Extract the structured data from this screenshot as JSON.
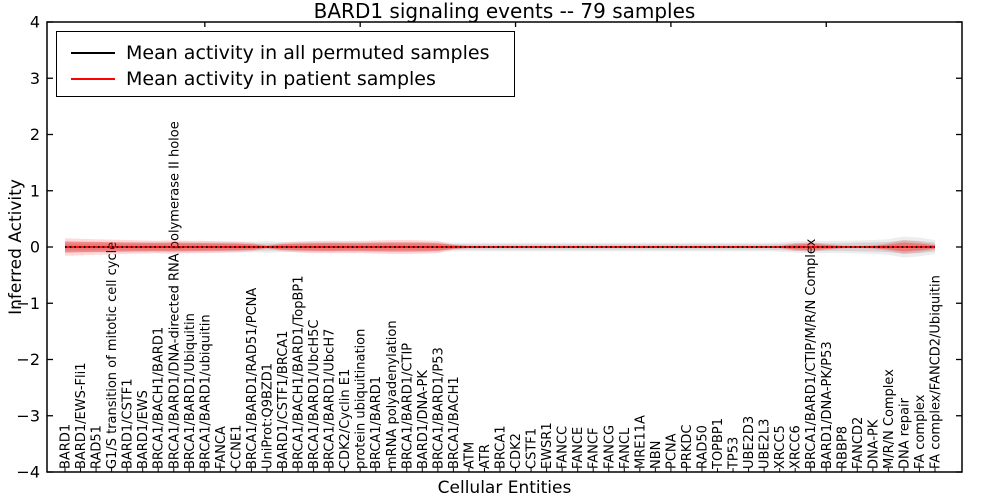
{
  "chart_data": {
    "type": "line",
    "title": "BARD1 signaling events -- 79 samples",
    "xlabel": "Cellular Entities",
    "ylabel": "Inferred Activity",
    "ylim": [
      -4,
      4
    ],
    "yticks": [
      4,
      3,
      2,
      1,
      0,
      -1,
      -2,
      -3,
      -4
    ],
    "grid": false,
    "legend_position": "upper left",
    "categories": [
      "BARD1",
      "BARD1/EWS-Fli1",
      "RAD51",
      "G1/S transition of mitotic cell cycle",
      "BARD1/CSTF1",
      "BARD1/EWS",
      "BRCA1/BACH1/BARD1",
      "BRCA1/BARD1/DNA-directed RNA polymerase II holoe",
      "BRCA1/BARD1/Ubiquitin",
      "BRCA1/BARD1/ubiquitin",
      "FANCA",
      "CCNE1",
      "BRCA1/BARD1/RAD51/PCNA",
      "UniProt:Q9BZD1",
      "BARD1/CSTF1/BRCA1",
      "BRCA1/BACH1/BARD1/TopBP1",
      "BRCA1/BARD1/UbcH5C",
      "BRCA1/BARD1/UbcH7",
      "CDK2/Cyclin E1",
      "protein ubiquitination",
      "BRCA1/BARD1",
      "mRNA polyadenylation",
      "BRCA1/BARD1/CTIP",
      "BARD1/DNA-PK",
      "BRCA1/BARD1/P53",
      "BRCA1/BACH1",
      "ATM",
      "ATR",
      "BRCA1",
      "CDK2",
      "CSTF1",
      "EWSR1",
      "FANCC",
      "FANCE",
      "FANCF",
      "FANCG",
      "FANCL",
      "MRE11A",
      "NBN",
      "PCNA",
      "PRKDC",
      "RAD50",
      "TOPBP1",
      "TP53",
      "UBE2D3",
      "UBE2L3",
      "XRCC5",
      "XRCC6",
      "BRCA1/BARD1/CTIP/M/R/N Complex",
      "BARD1/DNA-PK/P53",
      "RBBP8",
      "FANCD2",
      "DNA-PK",
      "M/R/N Complex",
      "DNA repair",
      "FA complex",
      "FA complex/FANCD2/Ubiquitin"
    ],
    "series": [
      {
        "name": "Mean activity in all permuted samples",
        "color": "#000000",
        "line_style": "dotted",
        "mean_activity": 0,
        "band_halfwidth": [
          0.06,
          0.06,
          0.06,
          0.06,
          0.06,
          0.06,
          0.06,
          0.06,
          0.06,
          0.06,
          0.06,
          0.06,
          0.06,
          0.068,
          0.058,
          0.058,
          0.058,
          0.058,
          0.058,
          0.058,
          0.058,
          0.058,
          0.058,
          0.058,
          0.055,
          0.052,
          0.05,
          0.05,
          0.05,
          0.05,
          0.05,
          0.05,
          0.05,
          0.05,
          0.05,
          0.05,
          0.05,
          0.05,
          0.05,
          0.05,
          0.05,
          0.05,
          0.05,
          0.05,
          0.05,
          0.05,
          0.055,
          0.065,
          0.072,
          0.07,
          0.07,
          0.075,
          0.08,
          0.09,
          0.12,
          0.108,
          0.08
        ]
      },
      {
        "name": "Mean activity in patient samples",
        "color": "#ff0000",
        "line_style": "solid",
        "mean_activity": 0,
        "band_halfwidth": [
          0.1,
          0.095,
          0.09,
          0.085,
          0.08,
          0.075,
          0.072,
          0.078,
          0.072,
          0.07,
          0.065,
          0.062,
          0.05,
          0.018,
          0.05,
          0.062,
          0.07,
          0.072,
          0.07,
          0.07,
          0.075,
          0.08,
          0.08,
          0.078,
          0.07,
          0.03,
          0.015,
          0.01,
          0.01,
          0.01,
          0.01,
          0.01,
          0.01,
          0.01,
          0.01,
          0.01,
          0.01,
          0.01,
          0.01,
          0.01,
          0.01,
          0.01,
          0.01,
          0.01,
          0.01,
          0.01,
          0.015,
          0.045,
          0.055,
          0.035,
          0.018,
          0.015,
          0.02,
          0.045,
          0.08,
          0.06,
          0.03
        ]
      }
    ]
  }
}
